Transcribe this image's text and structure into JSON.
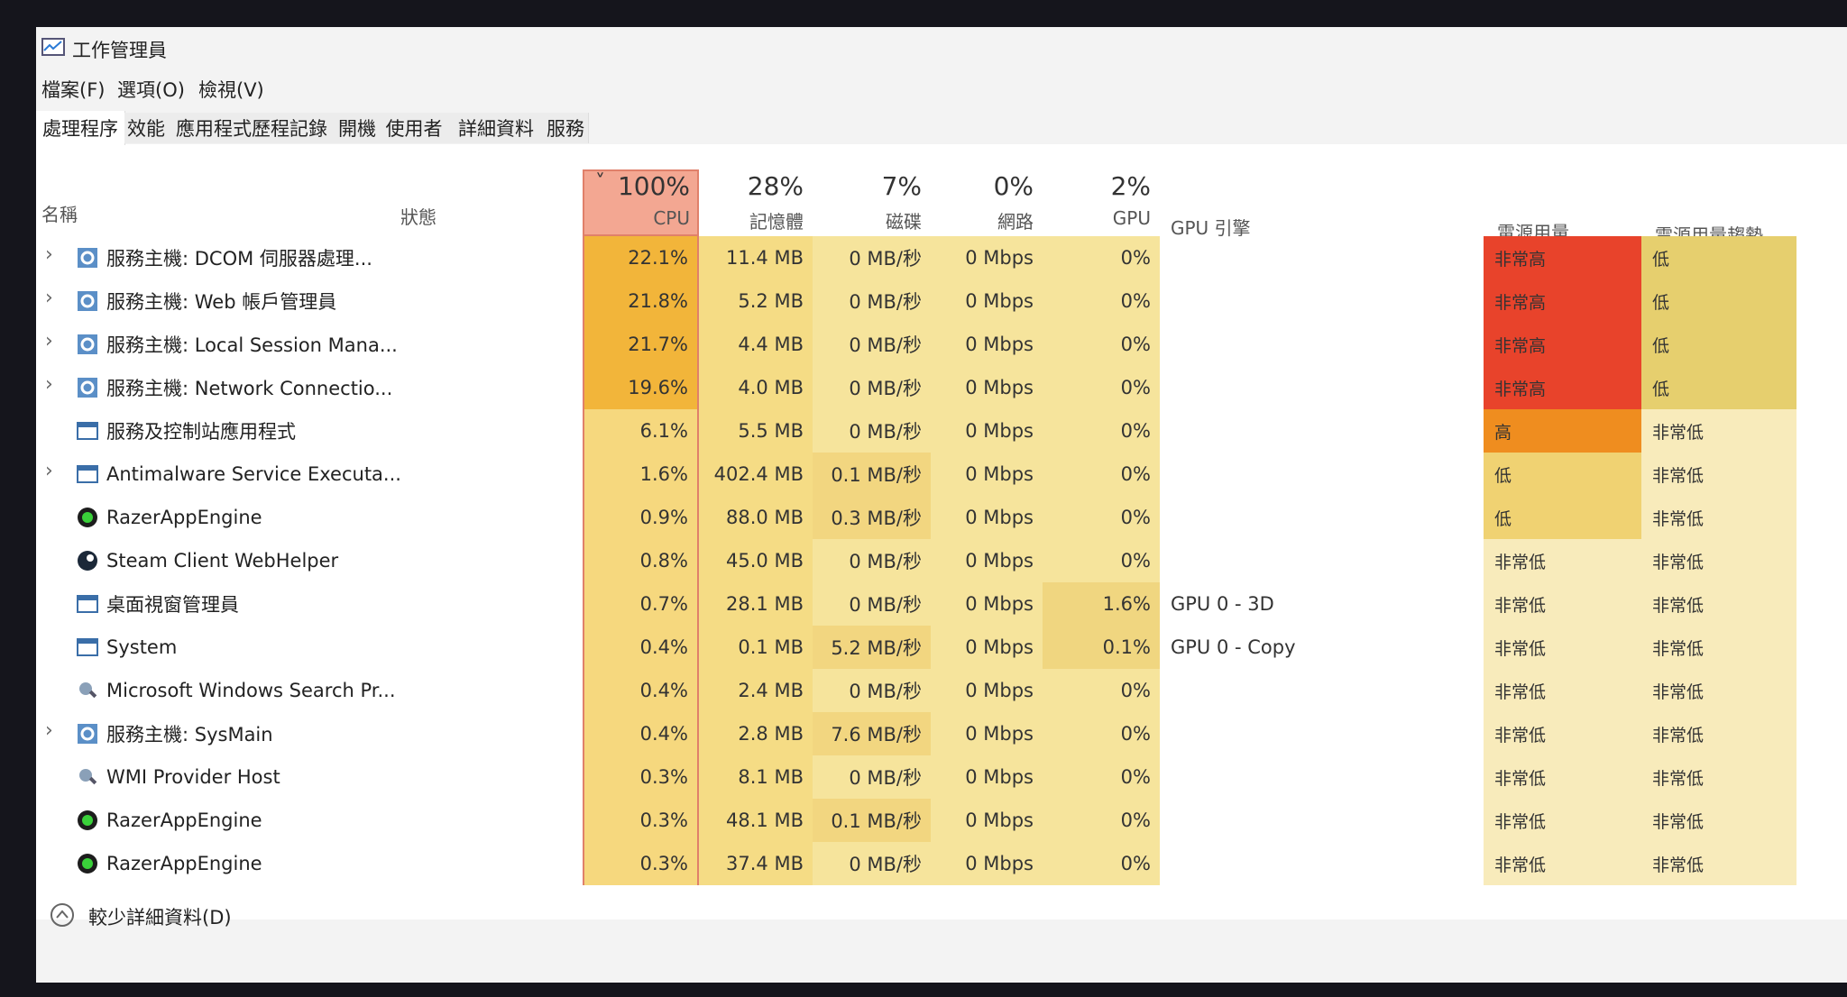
{
  "window": {
    "title": "工作管理員",
    "menu": [
      "檔案(F)",
      "選項(O)",
      "檢視(V)"
    ],
    "tabs": [
      "處理程序",
      "效能",
      "應用程式歷程記錄",
      "開機",
      "使用者",
      "詳細資料",
      "服務"
    ],
    "header": {
      "name": "名稱",
      "status": "狀態",
      "cpu": {
        "percent": "100%",
        "label": "CPU"
      },
      "memory": {
        "percent": "28%",
        "label": "記憶體"
      },
      "disk": {
        "percent": "7%",
        "label": "磁碟"
      },
      "network": {
        "percent": "0%",
        "label": "網路"
      },
      "gpu": {
        "percent": "2%",
        "label": "GPU"
      },
      "gpu_engine": "GPU 引擎",
      "power": "電源用量",
      "trend": "電源用量趨勢"
    },
    "rows": [
      {
        "name": "服務主機: DCOM 伺服器處理...",
        "expandable": true,
        "icon": "gear",
        "cpu": "22.1%",
        "memory": "11.4 MB",
        "disk": "0 MB/秒",
        "network": "0 Mbps",
        "gpu": "0%",
        "power": "非常高",
        "power_color": "#e8432b",
        "trend": "低",
        "trend_color": "#e6cf6e"
      },
      {
        "name": "服務主機: Web 帳戶管理員",
        "expandable": true,
        "icon": "gear",
        "cpu": "21.8%",
        "memory": "5.2 MB",
        "disk": "0 MB/秒",
        "network": "0 Mbps",
        "gpu": "0%",
        "power": "非常高",
        "power_color": "#e8432b",
        "trend": "低",
        "trend_color": "#e6cf6e"
      },
      {
        "name": "服務主機: Local Session Mana...",
        "expandable": true,
        "icon": "gear",
        "cpu": "21.7%",
        "memory": "4.4 MB",
        "disk": "0 MB/秒",
        "network": "0 Mbps",
        "gpu": "0%",
        "power": "非常高",
        "power_color": "#e8432b",
        "trend": "低",
        "trend_color": "#e6cf6e"
      },
      {
        "name": "服務主機: Network Connectio...",
        "expandable": true,
        "icon": "gear",
        "cpu": "19.6%",
        "memory": "4.0 MB",
        "disk": "0 MB/秒",
        "network": "0 Mbps",
        "gpu": "0%",
        "power": "非常高",
        "power_color": "#e8432b",
        "trend": "低",
        "trend_color": "#e6cf6e"
      },
      {
        "name": "服務及控制站應用程式",
        "expandable": false,
        "icon": "app",
        "cpu": "6.1%",
        "memory": "5.5 MB",
        "disk": "0 MB/秒",
        "network": "0 Mbps",
        "gpu": "0%",
        "power": "高",
        "power_color": "#ef8d1f",
        "trend": "非常低",
        "trend_color": "#f8ebbb"
      },
      {
        "name": "Antimalware Service Executa...",
        "expandable": true,
        "icon": "app",
        "cpu": "1.6%",
        "memory": "402.4 MB",
        "disk": "0.1 MB/秒",
        "network": "0 Mbps",
        "gpu": "0%",
        "power": "低",
        "power_color": "#f0d272",
        "trend": "非常低",
        "trend_color": "#f8ebbb"
      },
      {
        "name": "RazerAppEngine",
        "expandable": false,
        "icon": "razer",
        "cpu": "0.9%",
        "memory": "88.0 MB",
        "disk": "0.3 MB/秒",
        "network": "0 Mbps",
        "gpu": "0%",
        "power": "低",
        "power_color": "#f0d272",
        "trend": "非常低",
        "trend_color": "#f8ebbb"
      },
      {
        "name": "Steam Client WebHelper",
        "expandable": false,
        "icon": "steam",
        "cpu": "0.8%",
        "memory": "45.0 MB",
        "disk": "0 MB/秒",
        "network": "0 Mbps",
        "gpu": "0%",
        "power": "非常低",
        "power_color": "#f8ebbb",
        "trend": "非常低",
        "trend_color": "#f8ebbb"
      },
      {
        "name": "桌面視窗管理員",
        "expandable": false,
        "icon": "app",
        "cpu": "0.7%",
        "memory": "28.1 MB",
        "disk": "0 MB/秒",
        "network": "0 Mbps",
        "gpu": "1.6%",
        "gpu_engine": "GPU 0 - 3D",
        "power": "非常低",
        "power_color": "#f8ebbb",
        "trend": "非常低",
        "trend_color": "#f8ebbb"
      },
      {
        "name": "System",
        "expandable": false,
        "icon": "app",
        "cpu": "0.4%",
        "memory": "0.1 MB",
        "disk": "5.2 MB/秒",
        "network": "0 Mbps",
        "gpu": "0.1%",
        "gpu_engine": "GPU 0 - Copy",
        "power": "非常低",
        "power_color": "#f8ebbb",
        "trend": "非常低",
        "trend_color": "#f8ebbb"
      },
      {
        "name": "Microsoft Windows Search Pr...",
        "expandable": false,
        "icon": "search",
        "cpu": "0.4%",
        "memory": "2.4 MB",
        "disk": "0 MB/秒",
        "network": "0 Mbps",
        "gpu": "0%",
        "power": "非常低",
        "power_color": "#f8ebbb",
        "trend": "非常低",
        "trend_color": "#f8ebbb"
      },
      {
        "name": "服務主機: SysMain",
        "expandable": true,
        "icon": "gear",
        "cpu": "0.4%",
        "memory": "2.8 MB",
        "disk": "7.6 MB/秒",
        "network": "0 Mbps",
        "gpu": "0%",
        "power": "非常低",
        "power_color": "#f8ebbb",
        "trend": "非常低",
        "trend_color": "#f8ebbb"
      },
      {
        "name": "WMI Provider Host",
        "expandable": false,
        "icon": "search",
        "cpu": "0.3%",
        "memory": "8.1 MB",
        "disk": "0 MB/秒",
        "network": "0 Mbps",
        "gpu": "0%",
        "power": "非常低",
        "power_color": "#f8ebbb",
        "trend": "非常低",
        "trend_color": "#f8ebbb"
      },
      {
        "name": "RazerAppEngine",
        "expandable": false,
        "icon": "razer",
        "cpu": "0.3%",
        "memory": "48.1 MB",
        "disk": "0.1 MB/秒",
        "network": "0 Mbps",
        "gpu": "0%",
        "power": "非常低",
        "power_color": "#f8ebbb",
        "trend": "非常低",
        "trend_color": "#f8ebbb"
      },
      {
        "name": "RazerAppEngine",
        "expandable": false,
        "icon": "razer",
        "cpu": "0.3%",
        "memory": "37.4 MB",
        "disk": "0 MB/秒",
        "network": "0 Mbps",
        "gpu": "0%",
        "power": "非常低",
        "power_color": "#f8ebbb",
        "trend": "非常低",
        "trend_color": "#f8ebbb"
      }
    ],
    "footer": "較少詳細資料(D)"
  }
}
